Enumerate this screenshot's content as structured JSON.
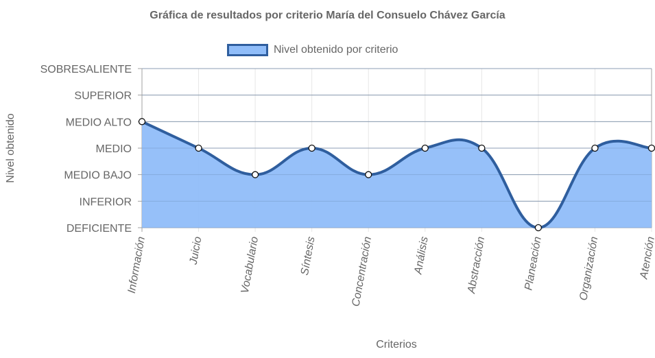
{
  "chart_data": {
    "type": "area",
    "title": "Gráfica de resultados por criterio María del Consuelo Chávez García",
    "xlabel": "Criterios",
    "ylabel": "Nivel obtenido",
    "categories": [
      "Información",
      "Juicio",
      "Vocabulario",
      "Síntesis",
      "Concentración",
      "Análisis",
      "Abstracción",
      "Planeación",
      "Organización",
      "Atención"
    ],
    "y_levels": [
      "DEFICIENTE",
      "INFERIOR",
      "MEDIO BAJO",
      "MEDIO",
      "MEDIO ALTO",
      "SUPERIOR",
      "SOBRESALIENTE"
    ],
    "ylim": [
      0,
      6
    ],
    "series": [
      {
        "name": "Nivel obtenido por criterio",
        "values": [
          4,
          3,
          2,
          3,
          2,
          3,
          3,
          0,
          3,
          3
        ]
      }
    ],
    "grid": true,
    "legend_position": "top",
    "colors": {
      "fill": "#90bdf9",
      "line": "#2f5e9e",
      "grid": "#e6e6e6",
      "axis": "#a0a0a0"
    }
  }
}
